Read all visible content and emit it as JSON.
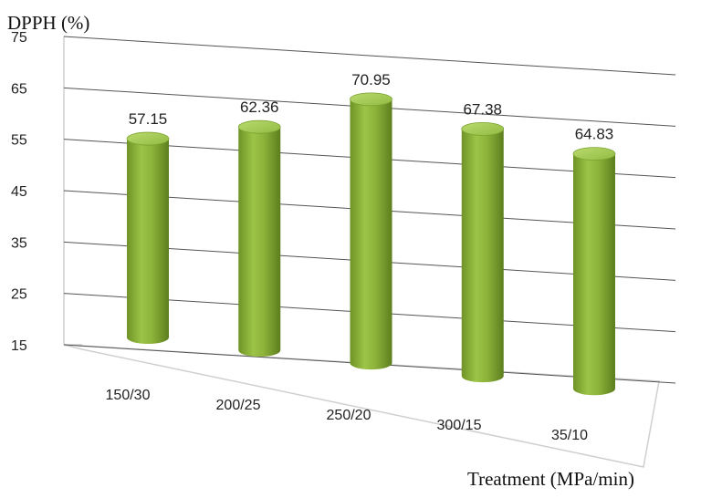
{
  "chart_data": {
    "type": "bar",
    "style": "3d-cylinder",
    "ylabel": "DPPH (%)",
    "xlabel": "Treatment (MPa/min)",
    "ylim": [
      15,
      75
    ],
    "yticks": [
      "75",
      "65",
      "55",
      "45",
      "35",
      "25",
      "15"
    ],
    "grid": true,
    "bar_color": "#8db33a",
    "categories": [
      "150/30",
      "200/25",
      "250/20",
      "300/15",
      "35/10"
    ],
    "values": [
      57.15,
      62.36,
      70.95,
      67.38,
      64.83
    ],
    "value_labels": [
      "57.15",
      "62.36",
      "70.95",
      "67.38",
      "64.83"
    ]
  }
}
